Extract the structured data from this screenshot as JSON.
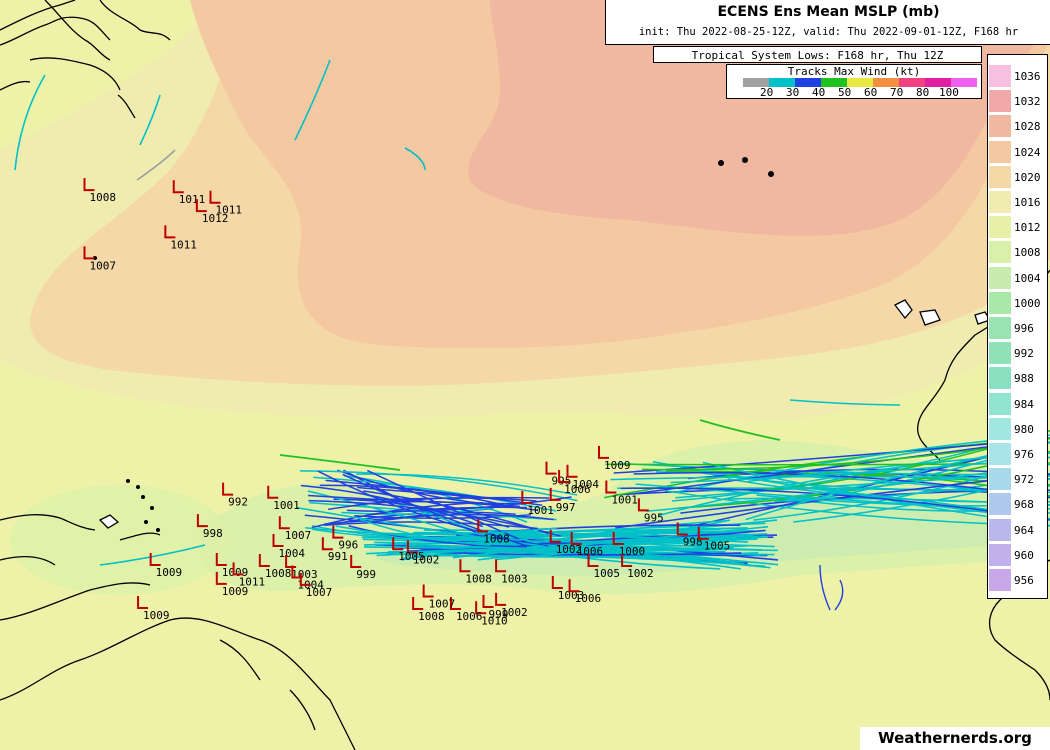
{
  "header": {
    "title": "ECENS Ens Mean MSLP (mb)",
    "subtitle": "init: Thu 2022-08-25-12Z, valid: Thu 2022-09-01-12Z, F168 hr"
  },
  "tropical_lows_label": "Tropical System Lows: F168 hr, Thu 12Z",
  "tracks_legend": {
    "title": "Tracks Max Wind (kt)",
    "labels": [
      "20",
      "30",
      "40",
      "50",
      "60",
      "70",
      "80",
      "100"
    ],
    "colors": [
      "#a0a0a0",
      "#00c0c8",
      "#2040e0",
      "#20c020",
      "#e8e840",
      "#f09040",
      "#f04080",
      "#e020a0",
      "#f060f0"
    ]
  },
  "colorbar": {
    "levels": [
      "1036",
      "1032",
      "1028",
      "1024",
      "1020",
      "1016",
      "1012",
      "1008",
      "1004",
      "1000",
      "996",
      "992",
      "988",
      "984",
      "980",
      "976",
      "972",
      "968",
      "964",
      "960",
      "956"
    ],
    "colors": [
      "#f8c0e0",
      "#f0a8a8",
      "#f0b8a0",
      "#f4c8a0",
      "#f4d8a8",
      "#f0ecb0",
      "#e8f0a8",
      "#d8f0a8",
      "#c8ecb0",
      "#a8e8a8",
      "#98e4b0",
      "#90e0b8",
      "#88e0c0",
      "#90e4d0",
      "#a0e8e0",
      "#a8e4e8",
      "#a8d8ec",
      "#b0c8ec",
      "#b8b8ec",
      "#c0b0ec",
      "#c8a8e8"
    ]
  },
  "credit": "Weathernerds.org",
  "lows": [
    {
      "label": "1008",
      "x": -60.0,
      "y": 48.8
    },
    {
      "label": "1007",
      "x": -60.0,
      "y": 42.3
    },
    {
      "label": "1011",
      "x": -51.5,
      "y": 48.6
    },
    {
      "label": "1012",
      "x": -49.3,
      "y": 46.8
    },
    {
      "label": "1011",
      "x": -48.0,
      "y": 47.6
    },
    {
      "label": "1011",
      "x": -52.3,
      "y": 44.3
    },
    {
      "label": "1009",
      "x": -11.0,
      "y": 23.3
    },
    {
      "label": "995",
      "x": -16.0,
      "y": 21.8
    },
    {
      "label": "1004",
      "x": -14.0,
      "y": 21.5
    },
    {
      "label": "1006",
      "x": -14.8,
      "y": 21.0
    },
    {
      "label": "1001",
      "x": -18.3,
      "y": 19.0
    },
    {
      "label": "1001",
      "x": -10.3,
      "y": 20.0
    },
    {
      "label": "997",
      "x": -15.6,
      "y": 19.3
    },
    {
      "label": "995",
      "x": -7.2,
      "y": 18.3
    },
    {
      "label": "1008",
      "x": -22.5,
      "y": 16.3
    },
    {
      "label": "1002",
      "x": -15.6,
      "y": 15.3
    },
    {
      "label": "1006",
      "x": -13.6,
      "y": 15.1
    },
    {
      "label": "1000",
      "x": -9.6,
      "y": 15.1
    },
    {
      "label": "998",
      "x": -3.5,
      "y": 16.0
    },
    {
      "label": "1005",
      "x": -1.5,
      "y": 15.6
    },
    {
      "label": "1002",
      "x": -8.8,
      "y": 13.0
    },
    {
      "label": "1005",
      "x": -12.0,
      "y": 13.0
    },
    {
      "label": "1003",
      "x": -15.4,
      "y": 10.9
    },
    {
      "label": "1006",
      "x": -13.8,
      "y": 10.6
    },
    {
      "label": "1002",
      "x": -20.8,
      "y": 9.3
    },
    {
      "label": "999",
      "x": -22.0,
      "y": 9.1
    },
    {
      "label": "1010",
      "x": -22.7,
      "y": 8.5
    },
    {
      "label": "1006",
      "x": -25.1,
      "y": 8.9
    },
    {
      "label": "1008",
      "x": -28.7,
      "y": 8.9
    },
    {
      "label": "1007",
      "x": -27.7,
      "y": 10.1
    },
    {
      "label": "1008",
      "x": -24.2,
      "y": 12.5
    },
    {
      "label": "1003",
      "x": -20.8,
      "y": 12.5
    },
    {
      "label": "1002",
      "x": -29.2,
      "y": 14.3
    },
    {
      "label": "1005",
      "x": -30.6,
      "y": 14.6
    },
    {
      "label": "999",
      "x": -34.6,
      "y": 12.9
    },
    {
      "label": "991",
      "x": -37.3,
      "y": 14.6
    },
    {
      "label": "996",
      "x": -36.3,
      "y": 15.7
    },
    {
      "label": "998",
      "x": -49.2,
      "y": 16.8
    },
    {
      "label": "992",
      "x": -46.8,
      "y": 19.8
    },
    {
      "label": "1001",
      "x": -42.5,
      "y": 19.5
    },
    {
      "label": "1007",
      "x": -41.4,
      "y": 16.6
    },
    {
      "label": "1004",
      "x": -42.0,
      "y": 14.9
    },
    {
      "label": "1009",
      "x": -47.4,
      "y": 13.1
    },
    {
      "label": "1009",
      "x": -47.4,
      "y": 11.3
    },
    {
      "label": "1011",
      "x": -45.8,
      "y": 12.2
    },
    {
      "label": "1008",
      "x": -43.3,
      "y": 13.0
    },
    {
      "label": "1003",
      "x": -40.8,
      "y": 12.9
    },
    {
      "label": "1004",
      "x": -40.2,
      "y": 11.9
    },
    {
      "label": "1007",
      "x": -39.4,
      "y": 11.2
    },
    {
      "label": "1009",
      "x": -53.7,
      "y": 13.1
    },
    {
      "label": "1009",
      "x": -54.9,
      "y": 9.0
    }
  ]
}
